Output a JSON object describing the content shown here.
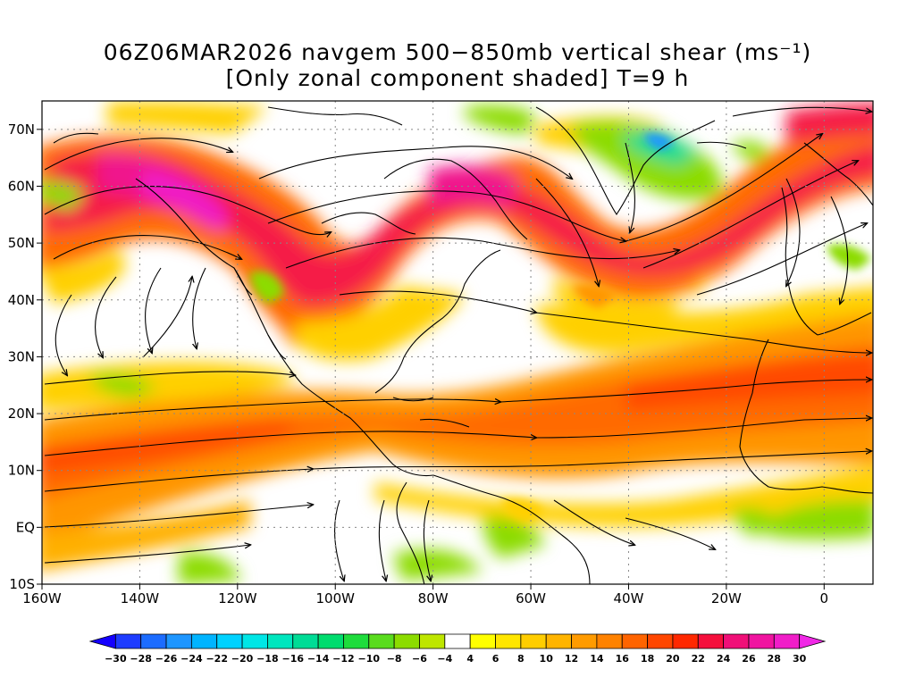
{
  "title": {
    "line1": "06Z06MAR2026 navgem 500−850mb vertical shear (ms⁻¹)",
    "line2": "[Only zonal component shaded] T=9 h"
  },
  "map": {
    "lon_range": [
      -160,
      10
    ],
    "lat_range": [
      -10,
      75
    ],
    "lon_ticks": [
      {
        "value": -160,
        "label": "160W"
      },
      {
        "value": -140,
        "label": "140W"
      },
      {
        "value": -120,
        "label": "120W"
      },
      {
        "value": -100,
        "label": "100W"
      },
      {
        "value": -80,
        "label": "80W"
      },
      {
        "value": -60,
        "label": "60W"
      },
      {
        "value": -40,
        "label": "40W"
      },
      {
        "value": -20,
        "label": "20W"
      },
      {
        "value": 0,
        "label": "0"
      }
    ],
    "lat_ticks": [
      {
        "value": 70,
        "label": "70N"
      },
      {
        "value": 60,
        "label": "60N"
      },
      {
        "value": 50,
        "label": "50N"
      },
      {
        "value": 40,
        "label": "40N"
      },
      {
        "value": 30,
        "label": "30N"
      },
      {
        "value": 20,
        "label": "20N"
      },
      {
        "value": 10,
        "label": "10N"
      },
      {
        "value": 0,
        "label": "EQ"
      },
      {
        "value": -10,
        "label": "10S"
      }
    ],
    "grid": "dotted"
  },
  "colorbar": {
    "levels": [
      -30,
      -28,
      -26,
      -24,
      -22,
      -20,
      -18,
      -16,
      -14,
      -12,
      -10,
      -8,
      -6,
      -4,
      4,
      6,
      8,
      10,
      12,
      14,
      16,
      18,
      20,
      22,
      24,
      26,
      28,
      30
    ],
    "colors": [
      "#1400ff",
      "#1e3cff",
      "#1c6cff",
      "#1e96ff",
      "#00b4ff",
      "#00d2ff",
      "#00e6e6",
      "#00e6be",
      "#00dc96",
      "#00dc6e",
      "#1edc3c",
      "#5adc1e",
      "#8cdc00",
      "#bee600",
      "#ffffff",
      "#ffff00",
      "#ffe600",
      "#ffcd00",
      "#ffb400",
      "#ff9b00",
      "#ff8200",
      "#ff6400",
      "#ff4600",
      "#ff2800",
      "#f50f3c",
      "#f00f78",
      "#f014a0",
      "#f01ec8",
      "#f028e6"
    ]
  }
}
